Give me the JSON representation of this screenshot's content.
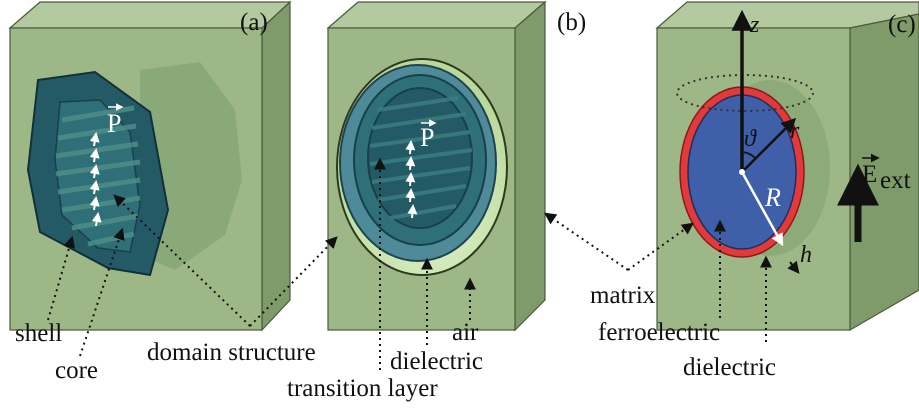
{
  "panels": {
    "a": "(a)",
    "b": "(b)",
    "c": "(c)"
  },
  "vectors": {
    "polarization": "P",
    "field": "E",
    "field_subscript": "ext"
  },
  "symbols": {
    "z": "z",
    "theta": "ϑ",
    "r": "r",
    "R": "R",
    "h": "h"
  },
  "labels": {
    "shell": "shell",
    "core": "core",
    "domain_structure": "domain structure",
    "air": "air",
    "dielectric_b": "dielectric",
    "transition_layer": "transition layer",
    "matrix": "matrix",
    "ferroelectric": "ferroelectric",
    "dielectric_c": "dielectric"
  },
  "colors": {
    "matrix_front": "#9db886",
    "matrix_side": "#7f9b6a",
    "matrix_top": "#b3c99f",
    "particle_dark": "#1d4f5c",
    "particle_teal": "#2f6f78",
    "ferroelectric_blue": "#3f5fa8",
    "shell_red": "#e23a3a",
    "air_green": "#d7ecc0"
  }
}
